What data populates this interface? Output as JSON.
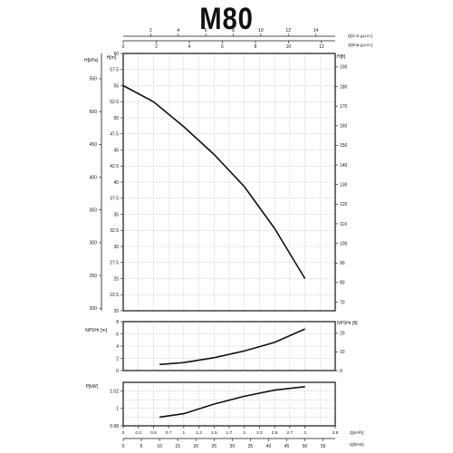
{
  "title": "M80",
  "chart_data": [
    {
      "type": "line",
      "name": "head",
      "x": [
        0,
        0.5,
        1.0,
        1.5,
        2.0,
        2.5,
        3.0
      ],
      "y": [
        55.0,
        52.5,
        48.6,
        44.3,
        39.3,
        32.8,
        25.0
      ],
      "xlim": [
        0,
        3.5
      ],
      "ylim": [
        20,
        60
      ],
      "grid": true,
      "axes": {
        "left_outer": {
          "label": "H[kPa]",
          "ticks": [
            200,
            250,
            300,
            350,
            400,
            450,
            500,
            550,
            600
          ]
        },
        "left_inner": {
          "label": "H[m]",
          "ticks": [
            "20",
            "22.5",
            "25",
            "27.5",
            "30",
            "32.5",
            "35",
            "37.5",
            "40",
            "42.5",
            "45",
            "47.5",
            "50",
            "52.5",
            "55",
            "57.5",
            "60"
          ]
        },
        "right": {
          "label": "H[ft]",
          "ticks": [
            70,
            80,
            90,
            100,
            110,
            120,
            130,
            140,
            150,
            160,
            170,
            180,
            190
          ]
        },
        "top_inner": {
          "label": "Q[Imp.g.p.m.]",
          "ticks": [
            0,
            2,
            4,
            6,
            8,
            10,
            12
          ]
        },
        "top_outer": {
          "label": "Q[U.S.g.p.m.]",
          "ticks": [
            2,
            4,
            6,
            8,
            10,
            12,
            14
          ]
        }
      }
    },
    {
      "type": "line",
      "name": "npsh",
      "x": [
        0.6,
        1.0,
        1.5,
        2.0,
        2.5,
        3.0
      ],
      "y": [
        1.0,
        1.3,
        2.1,
        3.2,
        4.6,
        6.8
      ],
      "xlim": [
        0,
        3.5
      ],
      "ylim": [
        0,
        8
      ],
      "grid": true,
      "axes": {
        "left": {
          "label": "NPSHr [m]",
          "ticks": [
            "0",
            "2",
            "4",
            "6",
            "8"
          ]
        },
        "right": {
          "label": "NPSHr [ft]",
          "ticks": [
            "0",
            "10",
            "20"
          ]
        }
      }
    },
    {
      "type": "line",
      "name": "power",
      "x": [
        0.6,
        1.0,
        1.5,
        2.0,
        2.5,
        3.0
      ],
      "y": [
        0.99,
        0.994,
        1.005,
        1.014,
        1.021,
        1.025
      ],
      "xlim": [
        0,
        3.5
      ],
      "ylim": [
        0.98,
        1.03
      ],
      "grid": true,
      "axes": {
        "left": {
          "label": "P[kW]",
          "ticks": [
            "0.98",
            "1",
            "1.02"
          ]
        },
        "bottom_inner": {
          "label": "Q[m³/h]",
          "ticks": [
            "0",
            "0.2",
            "0.5",
            "0.7",
            "1",
            "1.2",
            "1.5",
            "1.7",
            "2",
            "2.2",
            "2.5",
            "2.7",
            "3",
            "3.5"
          ]
        },
        "bottom_outer": {
          "label": "Q[l/min]",
          "ticks": [
            "0",
            "5",
            "10",
            "15",
            "20",
            "25",
            "30",
            "35",
            "40",
            "45",
            "50",
            "55"
          ]
        }
      }
    }
  ]
}
